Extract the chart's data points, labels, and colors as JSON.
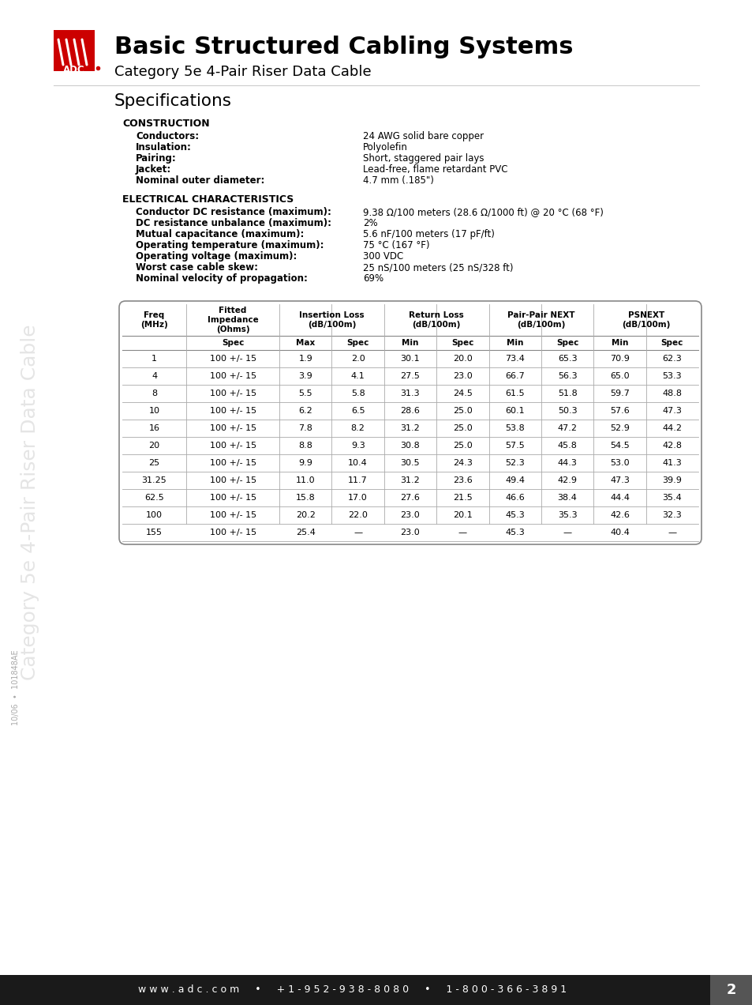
{
  "title_bold": "Basic Structured Cabling Systems",
  "title_sub": "Category 5e 4-Pair Riser Data Cable",
  "section_title": "Specifications",
  "construction_header": "CONSTRUCTION",
  "construction_items": [
    [
      "Conductors:",
      "24 AWG solid bare copper"
    ],
    [
      "Insulation:",
      "Polyolefin"
    ],
    [
      "Pairing:",
      "Short, staggered pair lays"
    ],
    [
      "Jacket:",
      "Lead-free, flame retardant PVC"
    ],
    [
      "Nominal outer diameter:",
      "4.7 mm (.185\")"
    ]
  ],
  "electrical_header": "ELECTRICAL CHARACTERISTICS",
  "electrical_items": [
    [
      "Conductor DC resistance (maximum):",
      "9.38 Ω/100 meters (28.6 Ω/1000 ft) @ 20 °C (68 °F)"
    ],
    [
      "DC resistance unbalance (maximum):",
      "2%"
    ],
    [
      "Mutual capacitance (maximum):",
      "5.6 nF/100 meters (17 pF/ft)"
    ],
    [
      "Operating temperature (maximum):",
      "75 °C (167 °F)"
    ],
    [
      "Operating voltage (maximum):",
      "300 VDC"
    ],
    [
      "Worst case cable skew:",
      "25 nS/100 meters (25 nS/328 ft)"
    ],
    [
      "Nominal velocity of propagation:",
      "69%"
    ]
  ],
  "table_col_headers_row1": [
    "Freq\n(MHz)",
    "Fitted\nImpedance\n(Ohms)",
    "Insertion Loss\n(dB/100m)",
    "",
    "Return Loss\n(dB/100m)",
    "",
    "Pair-Pair NEXT\n(dB/100m)",
    "",
    "PSNEXT\n(dB/100m)",
    ""
  ],
  "table_col_headers_row2": [
    "",
    "Spec",
    "Max",
    "Spec",
    "Min",
    "Spec",
    "Min",
    "Spec",
    "Min",
    "Spec"
  ],
  "table_data": [
    [
      "1",
      "100 +/- 15",
      "1.9",
      "2.0",
      "30.1",
      "20.0",
      "73.4",
      "65.3",
      "70.9",
      "62.3"
    ],
    [
      "4",
      "100 +/- 15",
      "3.9",
      "4.1",
      "27.5",
      "23.0",
      "66.7",
      "56.3",
      "65.0",
      "53.3"
    ],
    [
      "8",
      "100 +/- 15",
      "5.5",
      "5.8",
      "31.3",
      "24.5",
      "61.5",
      "51.8",
      "59.7",
      "48.8"
    ],
    [
      "10",
      "100 +/- 15",
      "6.2",
      "6.5",
      "28.6",
      "25.0",
      "60.1",
      "50.3",
      "57.6",
      "47.3"
    ],
    [
      "16",
      "100 +/- 15",
      "7.8",
      "8.2",
      "31.2",
      "25.0",
      "53.8",
      "47.2",
      "52.9",
      "44.2"
    ],
    [
      "20",
      "100 +/- 15",
      "8.8",
      "9.3",
      "30.8",
      "25.0",
      "57.5",
      "45.8",
      "54.5",
      "42.8"
    ],
    [
      "25",
      "100 +/- 15",
      "9.9",
      "10.4",
      "30.5",
      "24.3",
      "52.3",
      "44.3",
      "53.0",
      "41.3"
    ],
    [
      "31.25",
      "100 +/- 15",
      "11.0",
      "11.7",
      "31.2",
      "23.6",
      "49.4",
      "42.9",
      "47.3",
      "39.9"
    ],
    [
      "62.5",
      "100 +/- 15",
      "15.8",
      "17.0",
      "27.6",
      "21.5",
      "46.6",
      "38.4",
      "44.4",
      "35.4"
    ],
    [
      "100",
      "100 +/- 15",
      "20.2",
      "22.0",
      "23.0",
      "20.1",
      "45.3",
      "35.3",
      "42.6",
      "32.3"
    ],
    [
      "155",
      "100 +/- 15",
      "25.4",
      "—",
      "23.0",
      "—",
      "45.3",
      "—",
      "40.4",
      "—"
    ]
  ],
  "sidebar_text": "Category 5e 4-Pair Riser Data Cable",
  "footer_text": "w w w . a d c . c o m     •     + 1 - 9 5 2 - 9 3 8 - 8 0 8 0     •     1 - 8 0 0 - 3 6 6 - 3 8 9 1",
  "footer_page": "2",
  "bg_color": "#ffffff",
  "footer_bg": "#1a1a1a",
  "footer_text_color": "#ffffff",
  "red_color": "#cc0000",
  "text_color": "#000000",
  "light_gray": "#f0f0f0",
  "border_color": "#999999"
}
